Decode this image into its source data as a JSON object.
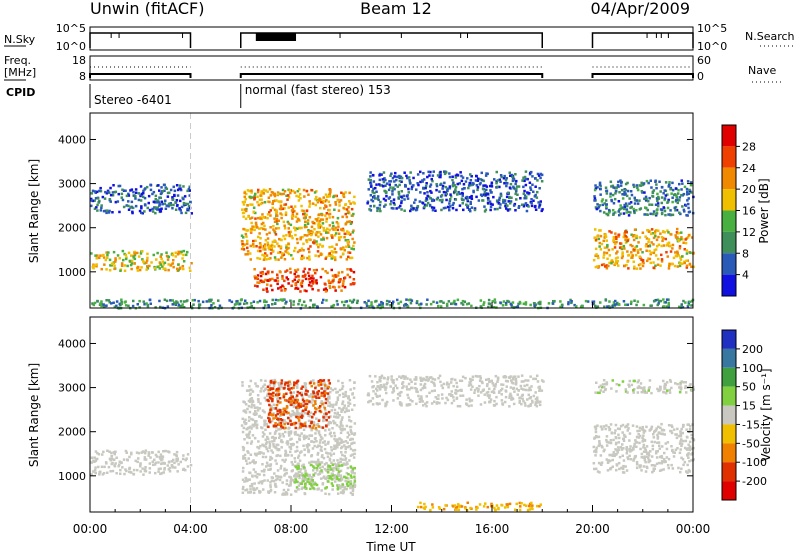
{
  "header": {
    "radar_name": "Unwin (fitACF)",
    "beam": "Beam 12",
    "date": "04/Apr/2009"
  },
  "stat_panels": {
    "nsky_label": "N.Sky",
    "nsky_ticks": [
      "10^5",
      "10^0"
    ],
    "nsearch_label": "N.Search",
    "nsearch_ticks": [
      "10^5",
      "10^0"
    ],
    "freq_label": "Freq.",
    "freq_unit": "[MHz]",
    "freq_ticks": [
      "18",
      "8"
    ],
    "nave_label": "Nave",
    "nave_ticks": [
      "60",
      "0"
    ],
    "cpid_label": "CPID",
    "cpid_segments": [
      {
        "label": "Stereo -6401",
        "start_hour": 0,
        "end_hour": 6
      },
      {
        "label": "normal (fast stereo) 153",
        "start_hour": 6,
        "end_hour": 24
      }
    ],
    "data_gaps_hours": [
      [
        4.0,
        6.0
      ],
      [
        18.0,
        20.0
      ]
    ]
  },
  "chart_data": [
    {
      "type": "heatmap",
      "quantity": "Power",
      "ylabel": "Slant Range [km]",
      "ylim": [
        180,
        4600
      ],
      "yticks": [
        "1000",
        "2000",
        "3000",
        "4000"
      ],
      "colorbar_label": "Power [dB]",
      "colorbar_ticks": [
        "4",
        "8",
        "12",
        "16",
        "20",
        "24",
        "28"
      ],
      "colorbar_range": [
        0,
        32
      ],
      "colors": [
        "#1010e0",
        "#2a5ab8",
        "#3e8f5a",
        "#48b040",
        "#f0c000",
        "#f08800",
        "#f04000",
        "#e00000"
      ],
      "echo_regions": [
        {
          "start_hour": 0.0,
          "end_hour": 4.0,
          "range_km": [
            1050,
            1500
          ],
          "level": 18
        },
        {
          "start_hour": 0.0,
          "end_hour": 4.0,
          "range_km": [
            2350,
            3000
          ],
          "level": 6
        },
        {
          "start_hour": 6.0,
          "end_hour": 10.5,
          "range_km": [
            1300,
            2900
          ],
          "level": 20
        },
        {
          "start_hour": 6.5,
          "end_hour": 10.5,
          "range_km": [
            580,
            1100
          ],
          "level": 26
        },
        {
          "start_hour": 11.0,
          "end_hour": 18.0,
          "range_km": [
            2400,
            3300
          ],
          "level": 6
        },
        {
          "start_hour": 20.0,
          "end_hour": 24.0,
          "range_km": [
            1100,
            2000
          ],
          "level": 20
        },
        {
          "start_hour": 20.0,
          "end_hour": 24.0,
          "range_km": [
            2300,
            3100
          ],
          "level": 8
        },
        {
          "start_hour": 0.0,
          "end_hour": 24.0,
          "range_km": [
            200,
            400
          ],
          "level": 10
        }
      ]
    },
    {
      "type": "heatmap",
      "quantity": "Velocity",
      "ylabel": "Slant Range [km]",
      "ylim": [
        180,
        4600
      ],
      "yticks": [
        "1000",
        "2000",
        "3000",
        "4000"
      ],
      "xlabel": "Time UT",
      "xticks": [
        "00:00",
        "04:00",
        "08:00",
        "12:00",
        "16:00",
        "20:00",
        "00:00"
      ],
      "xlim_hours": [
        0,
        24
      ],
      "colorbar_label": "Velocity [m s⁻¹]",
      "colorbar_ticks": [
        "200",
        "100",
        "50",
        "15",
        "-15",
        "-50",
        "-100",
        "-200"
      ],
      "colorbar_range": [
        -200,
        200
      ],
      "colors": [
        "#2030c0",
        "#3878a0",
        "#40a040",
        "#80d040",
        "#c8c8c0",
        "#f0c000",
        "#f08000",
        "#e03000",
        "#e00000"
      ],
      "echo_regions": [
        {
          "start_hour": 0.0,
          "end_hour": 4.0,
          "range_km": [
            1050,
            1600
          ],
          "level": 0
        },
        {
          "start_hour": 6.0,
          "end_hour": 10.5,
          "range_km": [
            600,
            3200
          ],
          "level": 0
        },
        {
          "start_hour": 7.0,
          "end_hour": 9.5,
          "range_km": [
            2100,
            3200
          ],
          "level": -120
        },
        {
          "start_hour": 8.0,
          "end_hour": 10.5,
          "range_km": [
            700,
            1300
          ],
          "level": 30
        },
        {
          "start_hour": 11.0,
          "end_hour": 18.0,
          "range_km": [
            2600,
            3300
          ],
          "level": 0
        },
        {
          "start_hour": 13.0,
          "end_hour": 18.0,
          "range_km": [
            250,
            420
          ],
          "level": -60
        },
        {
          "start_hour": 20.0,
          "end_hour": 24.0,
          "range_km": [
            1100,
            2200
          ],
          "level": 0
        },
        {
          "start_hour": 20.0,
          "end_hour": 24.0,
          "range_km": [
            2900,
            3200
          ],
          "level": 10
        }
      ]
    }
  ]
}
